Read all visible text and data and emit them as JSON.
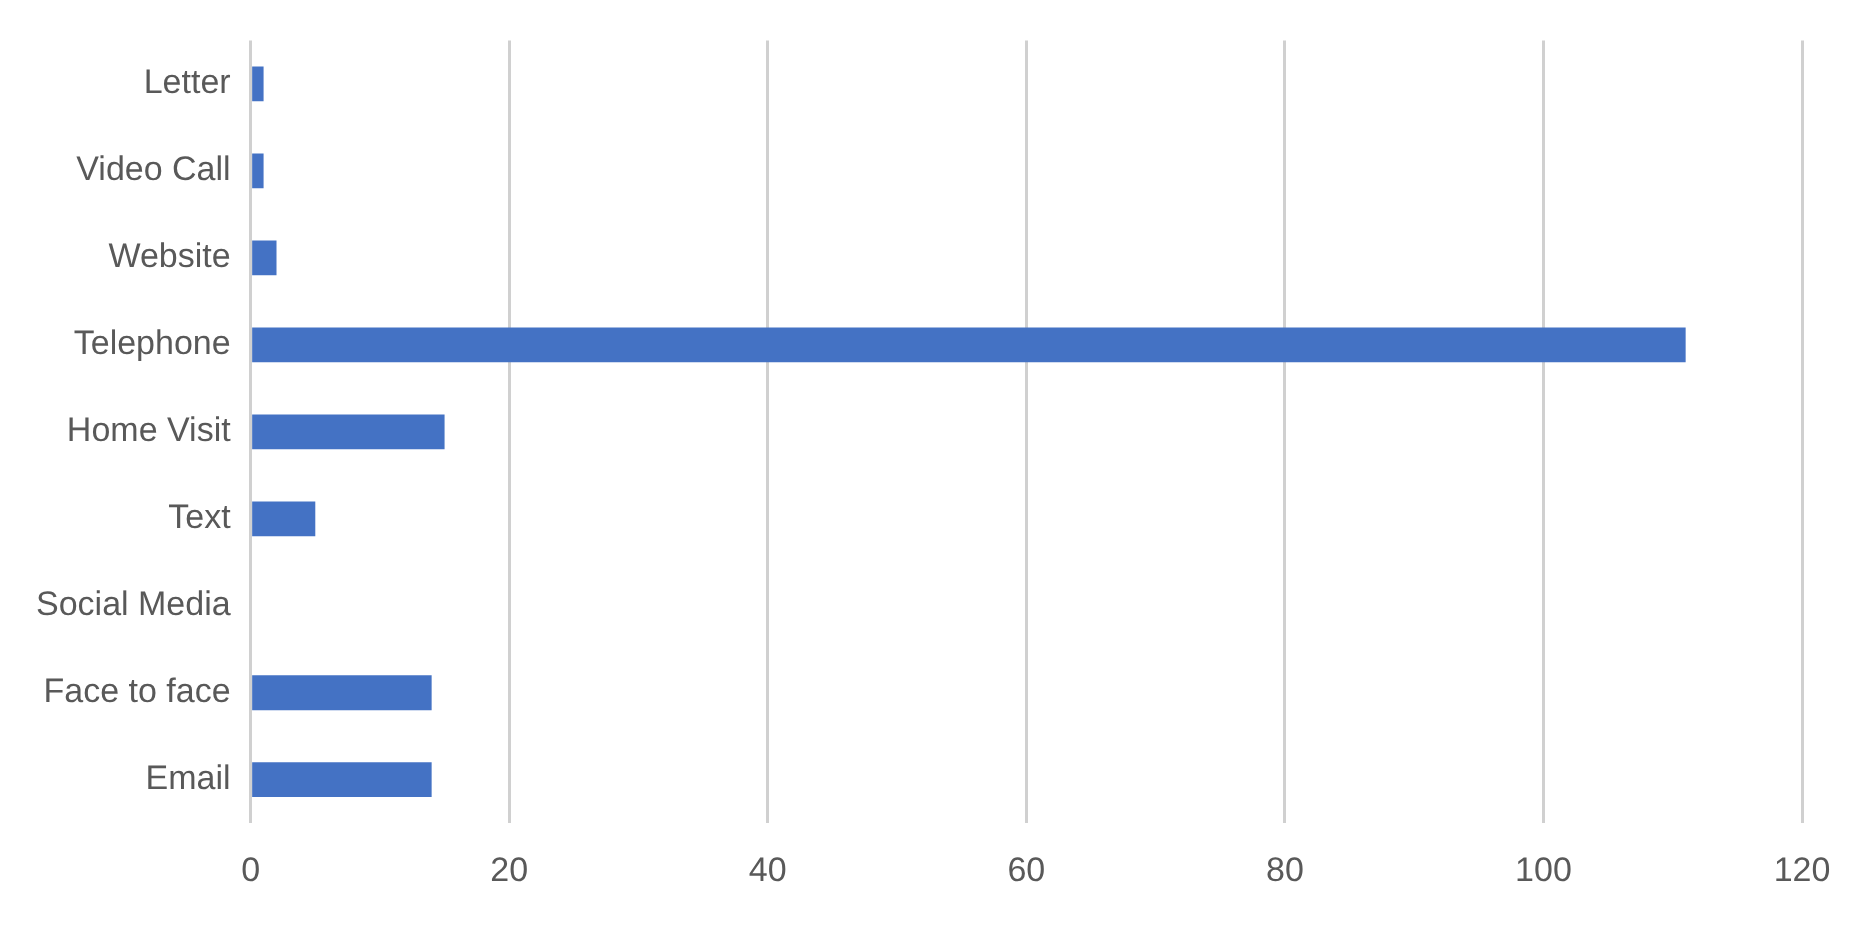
{
  "chart_data": {
    "type": "bar",
    "orientation": "horizontal",
    "categories": [
      "Letter",
      "Video Call",
      "Website",
      "Telephone",
      "Home Visit",
      "Text",
      "Social Media",
      "Face to face",
      "Email"
    ],
    "values": [
      1,
      1,
      2,
      111,
      15,
      5,
      0,
      14,
      14
    ],
    "color": "#4472c4",
    "xlim": [
      0,
      120
    ],
    "xticks": [
      0,
      20,
      40,
      60,
      80,
      100,
      120
    ],
    "grid": "x",
    "legend": false
  }
}
